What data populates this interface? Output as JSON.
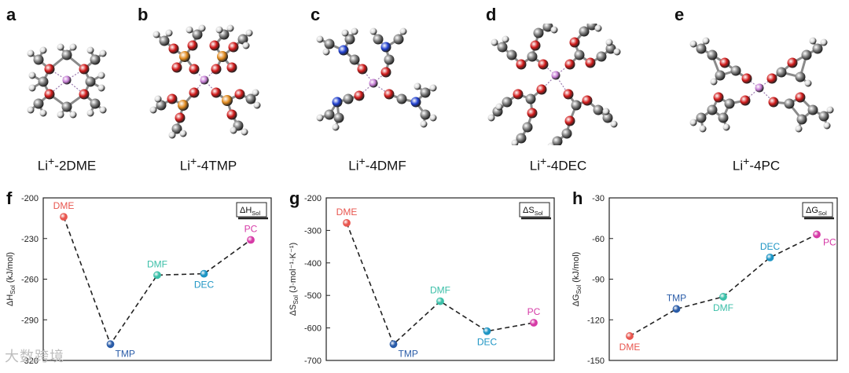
{
  "panels_top": [
    {
      "letter": "a",
      "label_prefix": "Li",
      "label_sup": "+",
      "label_suffix": "-2DME"
    },
    {
      "letter": "b",
      "label_prefix": "Li",
      "label_sup": "+",
      "label_suffix": "-4TMP"
    },
    {
      "letter": "c",
      "label_prefix": "Li",
      "label_sup": "+",
      "label_suffix": "-4DMF"
    },
    {
      "letter": "d",
      "label_prefix": "Li",
      "label_sup": "+",
      "label_suffix": "-4DEC"
    },
    {
      "letter": "e",
      "label_prefix": "Li",
      "label_sup": "+",
      "label_suffix": "-4PC"
    }
  ],
  "atom_colors": {
    "C": "#7a7a7a",
    "H": "#d9d9d9",
    "O": "#d11a1a",
    "Li": "#c77ed6",
    "P": "#e08a1e",
    "N": "#1f3fcf"
  },
  "watermark": "大数跨境",
  "chart_data": [
    {
      "letter": "f",
      "type": "line",
      "legend_text": "ΔH",
      "legend_sub": "Sol",
      "ylabel_main": "ΔH",
      "ylabel_sub": "Sol",
      "ylabel_unit": " (kJ/mol)",
      "ylim": [
        -320,
        -200
      ],
      "yticks": [
        -200,
        -230,
        -260,
        -290,
        -320
      ],
      "points": [
        {
          "name": "DME",
          "value": -214,
          "color": "#e8564f",
          "label_pos": "above"
        },
        {
          "name": "TMP",
          "value": -308,
          "color": "#2a5ca8",
          "label_pos": "below-right"
        },
        {
          "name": "DMF",
          "value": -257,
          "color": "#3bbfa8",
          "label_pos": "above"
        },
        {
          "name": "DEC",
          "value": -256,
          "color": "#1e95c4",
          "label_pos": "below"
        },
        {
          "name": "PC",
          "value": -231,
          "color": "#d63aa6",
          "label_pos": "above"
        }
      ]
    },
    {
      "letter": "g",
      "type": "line",
      "legend_text": "ΔS",
      "legend_sub": "Sol",
      "ylabel_main": "ΔS",
      "ylabel_sub": "Sol",
      "ylabel_unit": " (J·mol⁻¹·K⁻¹)",
      "ylim": [
        -700,
        -200
      ],
      "yticks": [
        -200,
        -300,
        -400,
        -500,
        -600,
        -700
      ],
      "points": [
        {
          "name": "DME",
          "value": -277,
          "color": "#e8564f",
          "label_pos": "above"
        },
        {
          "name": "TMP",
          "value": -650,
          "color": "#2a5ca8",
          "label_pos": "below-right"
        },
        {
          "name": "DMF",
          "value": -518,
          "color": "#3bbfa8",
          "label_pos": "above"
        },
        {
          "name": "DEC",
          "value": -610,
          "color": "#1e95c4",
          "label_pos": "below"
        },
        {
          "name": "PC",
          "value": -584,
          "color": "#d63aa6",
          "label_pos": "above"
        }
      ]
    },
    {
      "letter": "h",
      "type": "line",
      "legend_text": "ΔG",
      "legend_sub": "Sol",
      "ylabel_main": "ΔG",
      "ylabel_sub": "Sol",
      "ylabel_unit": " (kJ/mol)",
      "ylim": [
        -150,
        -30
      ],
      "yticks": [
        -30,
        -60,
        -90,
        -120,
        -150
      ],
      "points": [
        {
          "name": "DME",
          "value": -132,
          "color": "#e8564f",
          "label_pos": "below"
        },
        {
          "name": "TMP",
          "value": -112,
          "color": "#2a5ca8",
          "label_pos": "above"
        },
        {
          "name": "DMF",
          "value": -103,
          "color": "#3bbfa8",
          "label_pos": "below"
        },
        {
          "name": "DEC",
          "value": -74,
          "color": "#1e95c4",
          "label_pos": "above"
        },
        {
          "name": "PC",
          "value": -57,
          "color": "#d63aa6",
          "label_pos": "right"
        }
      ]
    }
  ]
}
